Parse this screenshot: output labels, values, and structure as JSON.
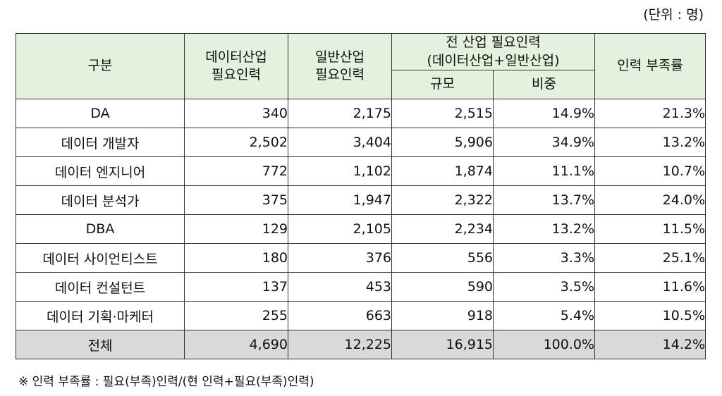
{
  "unit_note": "(단위 : 명)",
  "headers": {
    "category": "구분",
    "data_industry_line1": "데이터산업",
    "data_industry_line2": "필요인력",
    "general_industry_line1": "일반산업",
    "general_industry_line2": "필요인력",
    "all_industry_line1": "전 산업 필요인력",
    "all_industry_line2": "(데이터산업+일반산업)",
    "scale": "규모",
    "share": "비중",
    "shortage_rate": "인력 부족률"
  },
  "rows": [
    {
      "category": "DA",
      "data_industry": "340",
      "general_industry": "2,175",
      "scale": "2,515",
      "share": "14.9%",
      "shortage": "21.3%"
    },
    {
      "category": "데이터 개발자",
      "data_industry": "2,502",
      "general_industry": "3,404",
      "scale": "5,906",
      "share": "34.9%",
      "shortage": "13.2%"
    },
    {
      "category": "데이터 엔지니어",
      "data_industry": "772",
      "general_industry": "1,102",
      "scale": "1,874",
      "share": "11.1%",
      "shortage": "10.7%"
    },
    {
      "category": "데이터 분석가",
      "data_industry": "375",
      "general_industry": "1,947",
      "scale": "2,322",
      "share": "13.7%",
      "shortage": "24.0%"
    },
    {
      "category": "DBA",
      "data_industry": "129",
      "general_industry": "2,105",
      "scale": "2,234",
      "share": "13.2%",
      "shortage": "11.5%"
    },
    {
      "category": "데이터 사이언티스트",
      "data_industry": "180",
      "general_industry": "376",
      "scale": "556",
      "share": "3.3%",
      "shortage": "25.1%"
    },
    {
      "category": "데이터 컨설턴트",
      "data_industry": "137",
      "general_industry": "453",
      "scale": "590",
      "share": "3.5%",
      "shortage": "11.6%"
    },
    {
      "category": "데이터 기획·마케터",
      "data_industry": "255",
      "general_industry": "663",
      "scale": "918",
      "share": "5.4%",
      "shortage": "10.5%"
    }
  ],
  "total": {
    "category": "전체",
    "data_industry": "4,690",
    "general_industry": "12,225",
    "scale": "16,915",
    "share": "100.0%",
    "shortage": "14.2%"
  },
  "footnote": "※ 인력 부족률 : 필요(부족)인력/(현 인력+필요(부족)인력)",
  "colors": {
    "header_bg": "#e4f2dd",
    "total_bg": "#d9d9d9",
    "border": "#333333"
  }
}
